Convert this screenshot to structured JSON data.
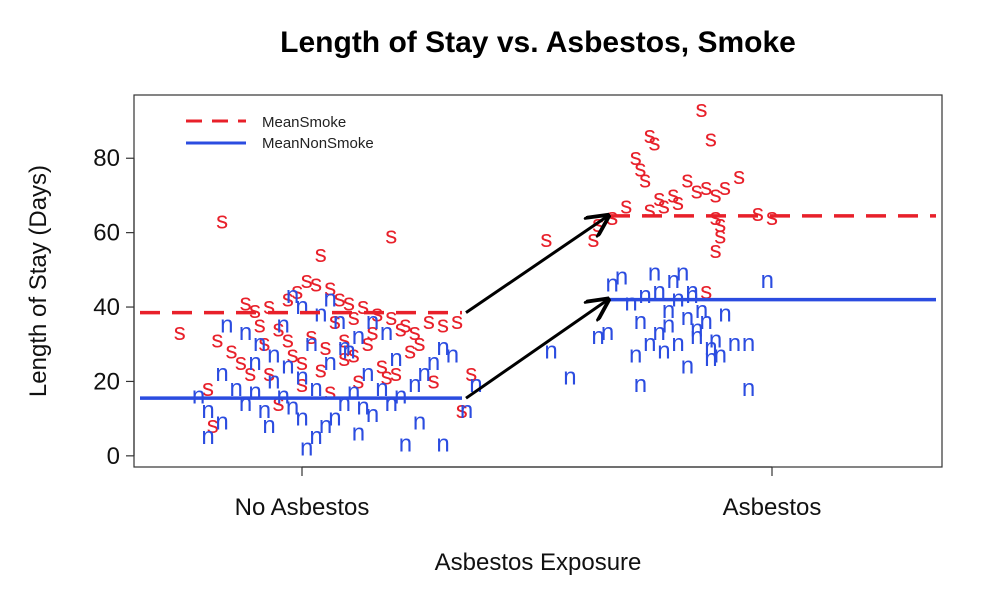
{
  "chart_data": {
    "type": "scatter",
    "title": "Length of Stay vs. Asbestos, Smoke",
    "xlabel": "Asbestos Exposure",
    "ylabel": "Length of Stay (Days)",
    "categories": [
      "No Asbestos",
      "Asbestos"
    ],
    "ylim": [
      -3,
      97
    ],
    "yticks": [
      0,
      20,
      40,
      60,
      80
    ],
    "grid": false,
    "legend": {
      "placement": "top-left",
      "entries": [
        {
          "label": "MeanSmoke",
          "style": "dashed",
          "color": "#e8202a"
        },
        {
          "label": "MeanNonSmoke",
          "style": "solid",
          "color": "#2b4ce0"
        }
      ]
    },
    "colors": {
      "smoke": "#e8202a",
      "nonsmoke": "#2b4ce0",
      "arrow": "#000000"
    },
    "means": [
      {
        "name": "MeanSmoke",
        "values": [
          38.5,
          64.5
        ]
      },
      {
        "name": "MeanNonSmoke",
        "values": [
          15.5,
          42
        ]
      }
    ],
    "series": [
      {
        "name": "s",
        "symbol": "s",
        "points": [
          [
            -0.17,
            63
          ],
          [
            0.04,
            54
          ],
          [
            0.19,
            59
          ],
          [
            -0.26,
            33
          ],
          [
            -0.12,
            41
          ],
          [
            -0.1,
            39
          ],
          [
            -0.07,
            40
          ],
          [
            -0.03,
            42
          ],
          [
            0.01,
            47
          ],
          [
            0.03,
            46
          ],
          [
            0.06,
            45
          ],
          [
            0.08,
            42
          ],
          [
            0.1,
            41
          ],
          [
            0.13,
            40
          ],
          [
            0.16,
            38
          ],
          [
            0.19,
            37
          ],
          [
            0.22,
            35
          ],
          [
            0.24,
            33
          ],
          [
            0.27,
            36
          ],
          [
            0.3,
            35
          ],
          [
            -0.15,
            28
          ],
          [
            -0.13,
            25
          ],
          [
            -0.11,
            22
          ],
          [
            -0.08,
            30
          ],
          [
            -0.05,
            34
          ],
          [
            -0.02,
            27
          ],
          [
            0.0,
            25
          ],
          [
            0.02,
            32
          ],
          [
            0.05,
            29
          ],
          [
            0.07,
            36
          ],
          [
            0.09,
            31
          ],
          [
            0.11,
            27
          ],
          [
            0.14,
            30
          ],
          [
            0.17,
            24
          ],
          [
            0.2,
            22
          ],
          [
            0.23,
            28
          ],
          [
            0.25,
            30
          ],
          [
            -0.2,
            18
          ],
          [
            -0.05,
            14
          ],
          [
            0.0,
            19
          ],
          [
            0.06,
            17
          ],
          [
            0.12,
            20
          ],
          [
            0.18,
            21
          ],
          [
            0.28,
            20
          ],
          [
            0.34,
            12
          ],
          [
            0.36,
            22
          ],
          [
            0.33,
            36
          ],
          [
            -0.18,
            31
          ],
          [
            -0.09,
            35
          ],
          [
            0.15,
            33
          ],
          [
            -0.19,
            8
          ],
          [
            -0.01,
            44
          ],
          [
            0.11,
            37
          ],
          [
            0.21,
            34
          ],
          [
            -0.03,
            31
          ],
          [
            0.09,
            26
          ],
          [
            0.04,
            23
          ],
          [
            -0.07,
            22
          ],
          [
            0.85,
            93
          ],
          [
            0.74,
            86
          ],
          [
            0.75,
            84
          ],
          [
            0.87,
            85
          ],
          [
            0.71,
            80
          ],
          [
            0.72,
            77
          ],
          [
            0.73,
            74
          ],
          [
            0.82,
            74
          ],
          [
            0.86,
            72
          ],
          [
            0.88,
            70
          ],
          [
            0.9,
            72
          ],
          [
            0.93,
            75
          ],
          [
            0.84,
            71
          ],
          [
            0.79,
            70
          ],
          [
            0.8,
            68
          ],
          [
            0.77,
            67
          ],
          [
            0.69,
            67
          ],
          [
            0.66,
            64
          ],
          [
            0.63,
            62
          ],
          [
            0.76,
            69
          ],
          [
            0.88,
            64
          ],
          [
            0.89,
            62
          ],
          [
            0.97,
            65
          ],
          [
            1.0,
            64
          ],
          [
            0.89,
            59
          ],
          [
            0.88,
            55
          ],
          [
            0.52,
            58
          ],
          [
            0.62,
            58
          ],
          [
            0.74,
            66
          ],
          [
            0.86,
            44
          ]
        ]
      },
      {
        "name": "n",
        "symbol": "n",
        "points": [
          [
            -0.22,
            16
          ],
          [
            -0.2,
            12
          ],
          [
            -0.17,
            9
          ],
          [
            -0.2,
            5
          ],
          [
            -0.17,
            22
          ],
          [
            -0.14,
            18
          ],
          [
            -0.12,
            14
          ],
          [
            -0.1,
            17
          ],
          [
            -0.08,
            12
          ],
          [
            -0.06,
            20
          ],
          [
            -0.04,
            16
          ],
          [
            -0.02,
            13
          ],
          [
            0.0,
            10
          ],
          [
            0.01,
            2
          ],
          [
            0.03,
            5
          ],
          [
            0.05,
            8
          ],
          [
            0.07,
            10
          ],
          [
            0.09,
            14
          ],
          [
            0.11,
            17
          ],
          [
            0.13,
            13
          ],
          [
            0.15,
            11
          ],
          [
            0.17,
            18
          ],
          [
            0.19,
            14
          ],
          [
            0.21,
            16
          ],
          [
            0.24,
            19
          ],
          [
            0.26,
            22
          ],
          [
            0.28,
            25
          ],
          [
            0.3,
            29
          ],
          [
            0.32,
            27
          ],
          [
            0.22,
            3
          ],
          [
            0.3,
            3
          ],
          [
            -0.16,
            35
          ],
          [
            -0.12,
            33
          ],
          [
            -0.09,
            30
          ],
          [
            -0.06,
            27
          ],
          [
            -0.03,
            24
          ],
          [
            0.0,
            21
          ],
          [
            0.03,
            18
          ],
          [
            0.06,
            25
          ],
          [
            0.09,
            29
          ],
          [
            0.12,
            32
          ],
          [
            0.15,
            36
          ],
          [
            0.18,
            33
          ],
          [
            0.04,
            38
          ],
          [
            -0.02,
            43
          ],
          [
            0.06,
            42
          ],
          [
            0.35,
            12
          ],
          [
            0.37,
            19
          ],
          [
            0.1,
            28
          ],
          [
            -0.04,
            35
          ],
          [
            0.02,
            30
          ],
          [
            0.08,
            36
          ],
          [
            0.14,
            22
          ],
          [
            0.2,
            26
          ],
          [
            0.25,
            9
          ],
          [
            -0.1,
            25
          ],
          [
            -0.07,
            8
          ],
          [
            0.0,
            40
          ],
          [
            0.12,
            6
          ],
          [
            0.53,
            28
          ],
          [
            0.57,
            21
          ],
          [
            0.63,
            32
          ],
          [
            0.65,
            33
          ],
          [
            0.68,
            48
          ],
          [
            0.7,
            41
          ],
          [
            0.72,
            36
          ],
          [
            0.74,
            30
          ],
          [
            0.76,
            33
          ],
          [
            0.78,
            39
          ],
          [
            0.8,
            42
          ],
          [
            0.82,
            37
          ],
          [
            0.84,
            34
          ],
          [
            0.86,
            36
          ],
          [
            0.88,
            31
          ],
          [
            0.9,
            38
          ],
          [
            0.92,
            30
          ],
          [
            0.73,
            43
          ],
          [
            0.75,
            49
          ],
          [
            0.79,
            47
          ],
          [
            0.81,
            49
          ],
          [
            0.83,
            43
          ],
          [
            0.85,
            39
          ],
          [
            0.87,
            29
          ],
          [
            0.89,
            27
          ],
          [
            0.72,
            19
          ],
          [
            0.83,
            44
          ],
          [
            0.99,
            47
          ],
          [
            0.95,
            30
          ],
          [
            0.95,
            18
          ],
          [
            0.66,
            46
          ],
          [
            0.71,
            27
          ],
          [
            0.77,
            28
          ],
          [
            0.82,
            24
          ],
          [
            0.87,
            26
          ],
          [
            0.76,
            44
          ],
          [
            0.84,
            32
          ],
          [
            0.78,
            35
          ],
          [
            0.8,
            30
          ]
        ]
      }
    ]
  }
}
